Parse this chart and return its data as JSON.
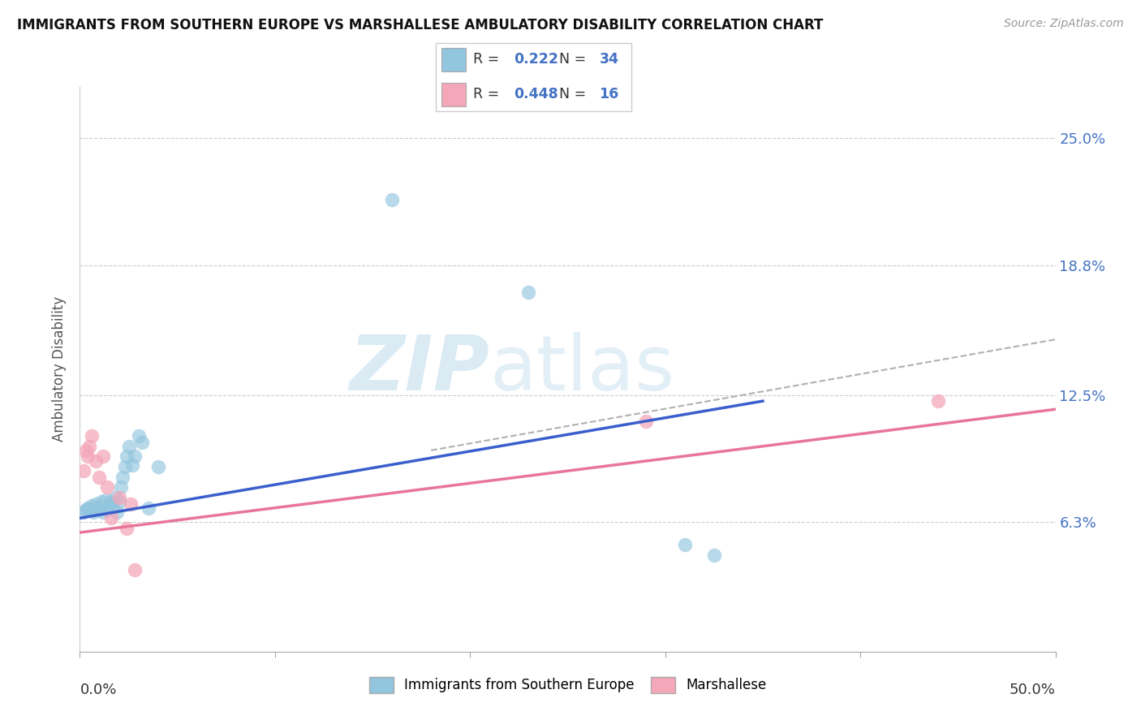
{
  "title": "IMMIGRANTS FROM SOUTHERN EUROPE VS MARSHALLESE AMBULATORY DISABILITY CORRELATION CHART",
  "source": "Source: ZipAtlas.com",
  "ylabel": "Ambulatory Disability",
  "ytick_vals": [
    0.063,
    0.125,
    0.188,
    0.25
  ],
  "ytick_labels": [
    "6.3%",
    "12.5%",
    "18.8%",
    "25.0%"
  ],
  "xlim": [
    0.0,
    0.5
  ],
  "ylim": [
    0.0,
    0.275
  ],
  "color_blue": "#92c5de",
  "color_pink": "#f4a7b9",
  "color_blue_line": "#3a5fcd",
  "color_pink_line": "#e8759a",
  "color_dashed": "#b0b0b0",
  "blue_scatter_x": [
    0.002,
    0.003,
    0.004,
    0.005,
    0.006,
    0.007,
    0.008,
    0.009,
    0.01,
    0.011,
    0.012,
    0.013,
    0.014,
    0.015,
    0.016,
    0.017,
    0.018,
    0.019,
    0.02,
    0.021,
    0.022,
    0.023,
    0.024,
    0.025,
    0.027,
    0.028,
    0.03,
    0.032,
    0.035,
    0.04,
    0.16,
    0.23,
    0.31,
    0.325
  ],
  "blue_scatter_y": [
    0.068,
    0.069,
    0.07,
    0.069,
    0.071,
    0.068,
    0.072,
    0.07,
    0.069,
    0.073,
    0.068,
    0.074,
    0.069,
    0.071,
    0.073,
    0.07,
    0.075,
    0.068,
    0.073,
    0.08,
    0.085,
    0.09,
    0.095,
    0.1,
    0.091,
    0.095,
    0.105,
    0.102,
    0.07,
    0.09,
    0.22,
    0.175,
    0.052,
    0.047
  ],
  "pink_scatter_x": [
    0.002,
    0.003,
    0.004,
    0.005,
    0.006,
    0.008,
    0.01,
    0.012,
    0.014,
    0.016,
    0.02,
    0.024,
    0.026,
    0.028,
    0.29,
    0.44
  ],
  "pink_scatter_y": [
    0.088,
    0.098,
    0.095,
    0.1,
    0.105,
    0.093,
    0.085,
    0.095,
    0.08,
    0.065,
    0.075,
    0.06,
    0.072,
    0.04,
    0.112,
    0.122
  ],
  "blue_line_x": [
    0.0,
    0.35
  ],
  "blue_line_y": [
    0.065,
    0.122
  ],
  "pink_line_x": [
    0.0,
    0.5
  ],
  "pink_line_y": [
    0.058,
    0.118
  ],
  "dashed_line_x": [
    0.18,
    0.5
  ],
  "dashed_line_y": [
    0.098,
    0.152
  ],
  "legend_label1": "Immigrants from Southern Europe",
  "legend_label2": "Marshallese",
  "legend1_R": "0.222",
  "legend1_N": "34",
  "legend2_R": "0.448",
  "legend2_N": "16"
}
